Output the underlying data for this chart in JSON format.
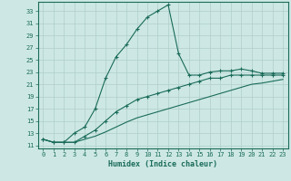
{
  "xlabel": "Humidex (Indice chaleur)",
  "bg_color": "#cde8e4",
  "line_color": "#1a6b5a",
  "grid_color": "#b0ceca",
  "xlim": [
    -0.5,
    23.5
  ],
  "ylim": [
    10.5,
    34.5
  ],
  "yticks": [
    11,
    13,
    15,
    17,
    19,
    21,
    23,
    25,
    27,
    29,
    31,
    33
  ],
  "xticks": [
    0,
    1,
    2,
    3,
    4,
    5,
    6,
    7,
    8,
    9,
    10,
    11,
    12,
    13,
    14,
    15,
    16,
    17,
    18,
    19,
    20,
    21,
    22,
    23
  ],
  "line1_x": [
    0,
    1,
    2,
    3,
    4,
    5,
    6,
    7,
    8,
    9,
    10,
    11,
    12,
    13,
    14,
    15,
    16,
    17,
    18,
    19,
    20,
    21,
    22,
    23
  ],
  "line1_y": [
    12,
    11.5,
    11.5,
    13,
    14,
    17,
    22,
    25.5,
    27.5,
    30,
    32,
    33,
    34,
    26,
    22.5,
    22.5,
    23,
    23.2,
    23.2,
    23.5,
    23.2,
    22.8,
    22.8,
    22.8
  ],
  "line2_x": [
    0,
    1,
    2,
    3,
    4,
    5,
    6,
    7,
    8,
    9,
    10,
    11,
    12,
    13,
    14,
    15,
    16,
    17,
    18,
    19,
    20,
    21,
    22,
    23
  ],
  "line2_y": [
    12,
    11.5,
    11.5,
    11.5,
    12.5,
    13.5,
    15,
    16.5,
    17.5,
    18.5,
    19,
    19.5,
    20,
    20.5,
    21,
    21.5,
    22,
    22,
    22.5,
    22.5,
    22.5,
    22.5,
    22.5,
    22.5
  ],
  "line3_x": [
    0,
    1,
    2,
    3,
    4,
    5,
    6,
    7,
    8,
    9,
    10,
    11,
    12,
    13,
    14,
    15,
    16,
    17,
    18,
    19,
    20,
    21,
    22,
    23
  ],
  "line3_y": [
    12,
    11.5,
    11.5,
    11.5,
    12,
    12.5,
    13.2,
    14.0,
    14.8,
    15.5,
    16.0,
    16.5,
    17.0,
    17.5,
    18.0,
    18.5,
    19.0,
    19.5,
    20.0,
    20.5,
    21.0,
    21.2,
    21.5,
    21.8
  ]
}
